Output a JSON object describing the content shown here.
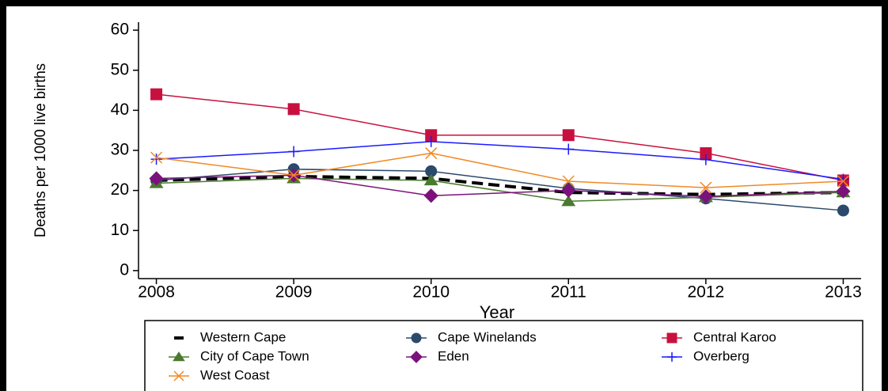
{
  "chart_data": {
    "type": "line",
    "x_label": "Year",
    "y_label": "Deaths per 1000 live births",
    "x": [
      2008,
      2009,
      2010,
      2011,
      2012,
      2013
    ],
    "xlim": [
      2007.87,
      2013.13
    ],
    "xticks": [
      2008,
      2009,
      2010,
      2011,
      2012,
      2013
    ],
    "ylim": [
      -2,
      62
    ],
    "yticks": [
      0,
      10,
      20,
      30,
      40,
      50,
      60
    ],
    "legend": "bottom",
    "series": [
      {
        "name": "Western Cape",
        "color": "#000000",
        "dash": true,
        "marker": "none",
        "values": [
          22.5,
          23.5,
          23,
          19.5,
          19,
          19.5
        ]
      },
      {
        "name": "Cape Winelands",
        "color": "#2b4a6b",
        "marker": "circle",
        "values": [
          22.5,
          25.3,
          24.8,
          20.5,
          18,
          15
        ]
      },
      {
        "name": "Central Karoo",
        "color": "#c8103e",
        "marker": "square",
        "values": [
          44,
          40.3,
          33.8,
          33.8,
          29.3,
          22.5
        ]
      },
      {
        "name": "City of Cape Town",
        "color": "#4a7a2e",
        "marker": "triangle",
        "values": [
          21.8,
          23,
          22.5,
          17.3,
          18.3,
          19.5
        ]
      },
      {
        "name": "Eden",
        "color": "#7b127b",
        "marker": "diamond",
        "values": [
          23,
          23.8,
          18.7,
          20,
          18.5,
          19.8
        ]
      },
      {
        "name": "Overberg",
        "color": "#1a1aff",
        "marker": "plus",
        "values": [
          27.8,
          29.7,
          32.2,
          30.3,
          27.7,
          22.8
        ]
      },
      {
        "name": "West Coast",
        "color": "#f08a24",
        "marker": "x",
        "values": [
          28.2,
          23.8,
          29.3,
          22.3,
          20.7,
          22.3
        ]
      }
    ]
  }
}
